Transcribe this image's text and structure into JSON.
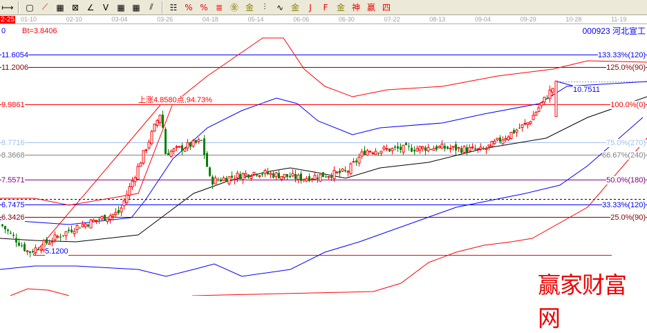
{
  "toolbar": {
    "icons": [
      "fit-width-icon",
      "box-icon",
      "fan-red-icon",
      "grid-box-icon",
      "fan-purple-icon",
      "angle-icon",
      "v-line-icon",
      "grid-icon",
      "grid-arrow-icon",
      "parallel-lines-icon",
      "ruler-icon",
      "percent-fan-icon",
      "percent-icon",
      "percent-lines-icon",
      "gold-circle-icon",
      "gold-lines-icon",
      "marker-icon",
      "wave-icon",
      "gold-icon",
      "j-line-icon",
      "f-line-icon",
      "gold-fan-icon",
      "shen-line-icon",
      "ying-line-icon",
      "si-line-icon"
    ],
    "glyphs": [
      "⟼",
      "▢",
      "⟋",
      "▦",
      "⊠",
      "∠",
      "V",
      "▦",
      "▦",
      "⫽",
      "☷",
      "%",
      "%",
      "≣",
      "㊎",
      "金",
      "⫶",
      "∿",
      "金",
      "J",
      "F",
      "金",
      "神",
      "赢",
      "四"
    ]
  },
  "axis": {
    "current": "2-25",
    "dates": [
      "01-10",
      "02-10",
      "03-04",
      "03-26",
      "04-18",
      "05-14",
      "06-06",
      "06-30",
      "07-22",
      "08-13",
      "09-04",
      "09-29",
      "10-28",
      "11-19"
    ]
  },
  "info": {
    "zero": "0",
    "bt": "Bt=3.8406",
    "stock": "000923 河北宣工"
  },
  "colors": {
    "up": "#ff0000",
    "down": "#008000",
    "ma": "#000000",
    "band_blue": "#0000ff"
  },
  "chart_data": {
    "type": "candlestick",
    "levels": [
      {
        "price": "11.6054",
        "pct": "133.33%(120)",
        "color": "#0000ff"
      },
      {
        "price": "11.2006",
        "pct": "125.0%(90)",
        "color": "#800000"
      },
      {
        "price": "9.9861",
        "pct": "100.0%(0)",
        "color": "#ff0000"
      },
      {
        "price": "8.7716",
        "pct": "75.0%(270)",
        "color": "#a0c0f0"
      },
      {
        "price": "8.3668",
        "pct": "66.67%(240)",
        "color": "#808080"
      },
      {
        "price": "7.5571",
        "pct": "50.0%(180)",
        "color": "#800080"
      },
      {
        "price": "6.7475",
        "pct": "33.33%(120)",
        "color": "#0000ff"
      },
      {
        "price": "6.3426",
        "pct": "25.0%(90)",
        "color": "#800000"
      }
    ],
    "low_label": "5.1200",
    "high_label": "10.7511",
    "rise_label": "上涨4.8580点,94.73%",
    "closes": [
      [
        "12-25",
        6.1
      ],
      [
        "01-10",
        5.2
      ],
      [
        "02-10",
        6.0
      ],
      [
        "03-04",
        6.5
      ],
      [
        "03-15",
        9.8
      ],
      [
        "03-26",
        8.4
      ],
      [
        "04-10",
        8.8
      ],
      [
        "04-18",
        7.5
      ],
      [
        "05-14",
        7.8
      ],
      [
        "06-06",
        7.6
      ],
      [
        "06-30",
        7.8
      ],
      [
        "07-12",
        8.5
      ],
      [
        "08-13",
        8.6
      ],
      [
        "09-04",
        8.5
      ],
      [
        "09-29",
        9.4
      ],
      [
        "10-08",
        10.75
      ]
    ]
  },
  "watermark": "赢家财富网"
}
